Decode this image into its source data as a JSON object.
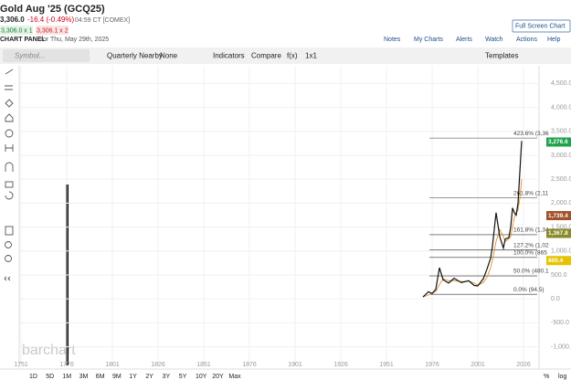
{
  "header": {
    "title": "Gold Aug '25 (GCQ25)",
    "last": "3,306.0",
    "change": "-16.4 (-0.49%)",
    "time": "04:59 CT [COMEX]",
    "bid": "3,306.0 x 1",
    "ask": "3,306.1 x 2",
    "panel": "CHART PANEL",
    "date": "for Thu, May 29th, 2025",
    "fullscreen": "Full Screen Chart",
    "links": [
      "Notes",
      "My Charts",
      "Alerts",
      "Watch",
      "Actions",
      "Help"
    ]
  },
  "toolbar": {
    "symbol": "Symbol...",
    "period": "Quarterly Nearby",
    "study": "None",
    "indicators": "Indicators",
    "compare": "Compare",
    "fx": "f(x)",
    "layout": "1x1",
    "templates": "Templates"
  },
  "chart_data": {
    "type": "line",
    "x": [
      1971,
      1974,
      1976,
      1978,
      1980,
      1982,
      1985,
      1988,
      1992,
      1996,
      1999,
      2001,
      2004,
      2006,
      2008,
      2009,
      2011,
      2013,
      2015,
      2016,
      2018,
      2019,
      2020,
      2021,
      2022,
      2023,
      2024,
      2025
    ],
    "series": [
      {
        "color": "#111111",
        "values": [
          40,
          150,
          110,
          200,
          650,
          400,
          330,
          430,
          340,
          380,
          280,
          270,
          420,
          620,
          850,
          1100,
          1800,
          1300,
          1060,
          1250,
          1280,
          1500,
          1900,
          1800,
          1750,
          2000,
          2650,
          3300
        ]
      },
      {
        "color": "#e0902a",
        "values": [
          40,
          80,
          120,
          150,
          300,
          420,
          380,
          380,
          360,
          370,
          330,
          290,
          340,
          450,
          650,
          800,
          1200,
          1450,
          1300,
          1200,
          1250,
          1300,
          1500,
          1700,
          1800,
          1850,
          2100,
          2500
        ]
      }
    ],
    "xlim": [
      1750.5,
      2034.5
    ],
    "ylim": [
      -1390,
      4870
    ],
    "xticks": [
      1751,
      1776,
      1801,
      1826,
      1851,
      1876,
      1901,
      1926,
      1951,
      1976,
      2001,
      2026
    ],
    "yticks": [
      {
        "value": 4500,
        "label": "4,500.0"
      },
      {
        "value": 4000,
        "label": "4,000.0"
      },
      {
        "value": 3500,
        "label": "3,500.0"
      },
      {
        "value": 3000,
        "label": "3,000.0"
      },
      {
        "value": 2500,
        "label": "2,500.0"
      },
      {
        "value": 2000,
        "label": "2,000.0"
      },
      {
        "value": 1500,
        "label": "1,500.0"
      },
      {
        "value": 1000,
        "label": "1,000.0"
      },
      {
        "value": 500,
        "label": "500.0"
      },
      {
        "value": 0,
        "label": "0.0"
      },
      {
        "value": -500,
        "label": "-500.0"
      },
      {
        "value": -1000,
        "label": "-1,000.0"
      }
    ],
    "price_labels": [
      {
        "value": 3276.6,
        "label": "3,276.6",
        "color": "#1fa34a"
      },
      {
        "value": 1739.4,
        "label": "1,739.4",
        "color": "#a0522d"
      },
      {
        "value": 1367.8,
        "label": "1,367.8",
        "color": "#8a8a2a"
      },
      {
        "value": 800.4,
        "label": "800.4",
        "color": "#e6c300"
      }
    ],
    "fib": [
      {
        "value": 3360,
        "label": "423.6% (3,36"
      },
      {
        "value": 2110,
        "label": "261.8% (2,11"
      },
      {
        "value": 1340,
        "label": "161.8% (1,34"
      },
      {
        "value": 1020,
        "label": "127.2% (1,02"
      },
      {
        "value": 865,
        "label": "100.0% (865"
      },
      {
        "value": 480.1,
        "label": "50.0% (480.1"
      },
      {
        "value": 94.5,
        "label": "0.0% (94.5)"
      }
    ],
    "watermark": "barchart"
  },
  "footer": {
    "ranges": [
      "1D",
      "5D",
      "1M",
      "3M",
      "6M",
      "9M",
      "1Y",
      "2Y",
      "3Y",
      "5Y",
      "10Y",
      "20Y",
      "Max"
    ],
    "percent": "%",
    "log": "log"
  }
}
